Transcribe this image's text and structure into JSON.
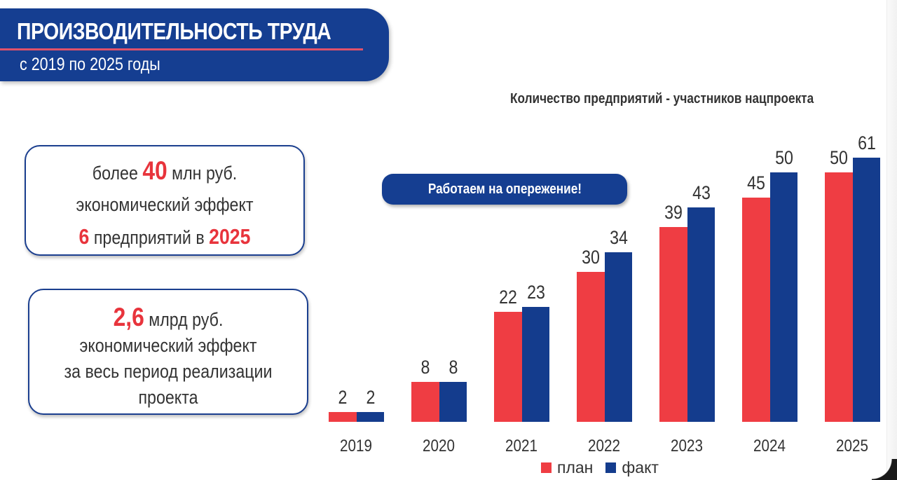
{
  "header": {
    "title": "ПРОИЗВОДИТЕЛЬНОСТЬ ТРУДА",
    "subtitle": "с 2019 по 2025 годы"
  },
  "cards": [
    {
      "lines": [
        {
          "pre": "более ",
          "highlight": "40",
          "post": " млн руб."
        },
        {
          "text": "экономический эффект"
        },
        {
          "highlight": "6",
          "mid": " предприятий в ",
          "highlight2": "2025"
        }
      ]
    },
    {
      "lines": [
        {
          "highlight": "2,6",
          "post": " млрд руб."
        },
        {
          "text": "экономический эффект"
        },
        {
          "text": "за весь период реализации"
        },
        {
          "text": "проекта"
        }
      ]
    }
  ],
  "badge": {
    "label": "Работаем на опережение!"
  },
  "colors": {
    "brand_blue": "#153e91",
    "plan_red": "#ef3d43",
    "fact_blue": "#143c8d",
    "accent_red": "#e8343c"
  },
  "chart_data": {
    "type": "bar",
    "title": "Количество предприятий - участников нацпроекта",
    "categories": [
      "2019",
      "2020",
      "2021",
      "2022",
      "2023",
      "2024",
      "2025"
    ],
    "series": [
      {
        "name": "план",
        "color": "#ef3d43",
        "values": [
          2,
          8,
          22,
          30,
          39,
          45,
          50
        ]
      },
      {
        "name": "факт",
        "color": "#143c8d",
        "values": [
          2,
          8,
          23,
          34,
          43,
          50,
          61
        ]
      }
    ],
    "xlabel": "",
    "ylabel": "",
    "grid": false,
    "legend_position": "bottom",
    "data_labels": true
  },
  "legend": {
    "plan": "план",
    "fact": "факт"
  }
}
